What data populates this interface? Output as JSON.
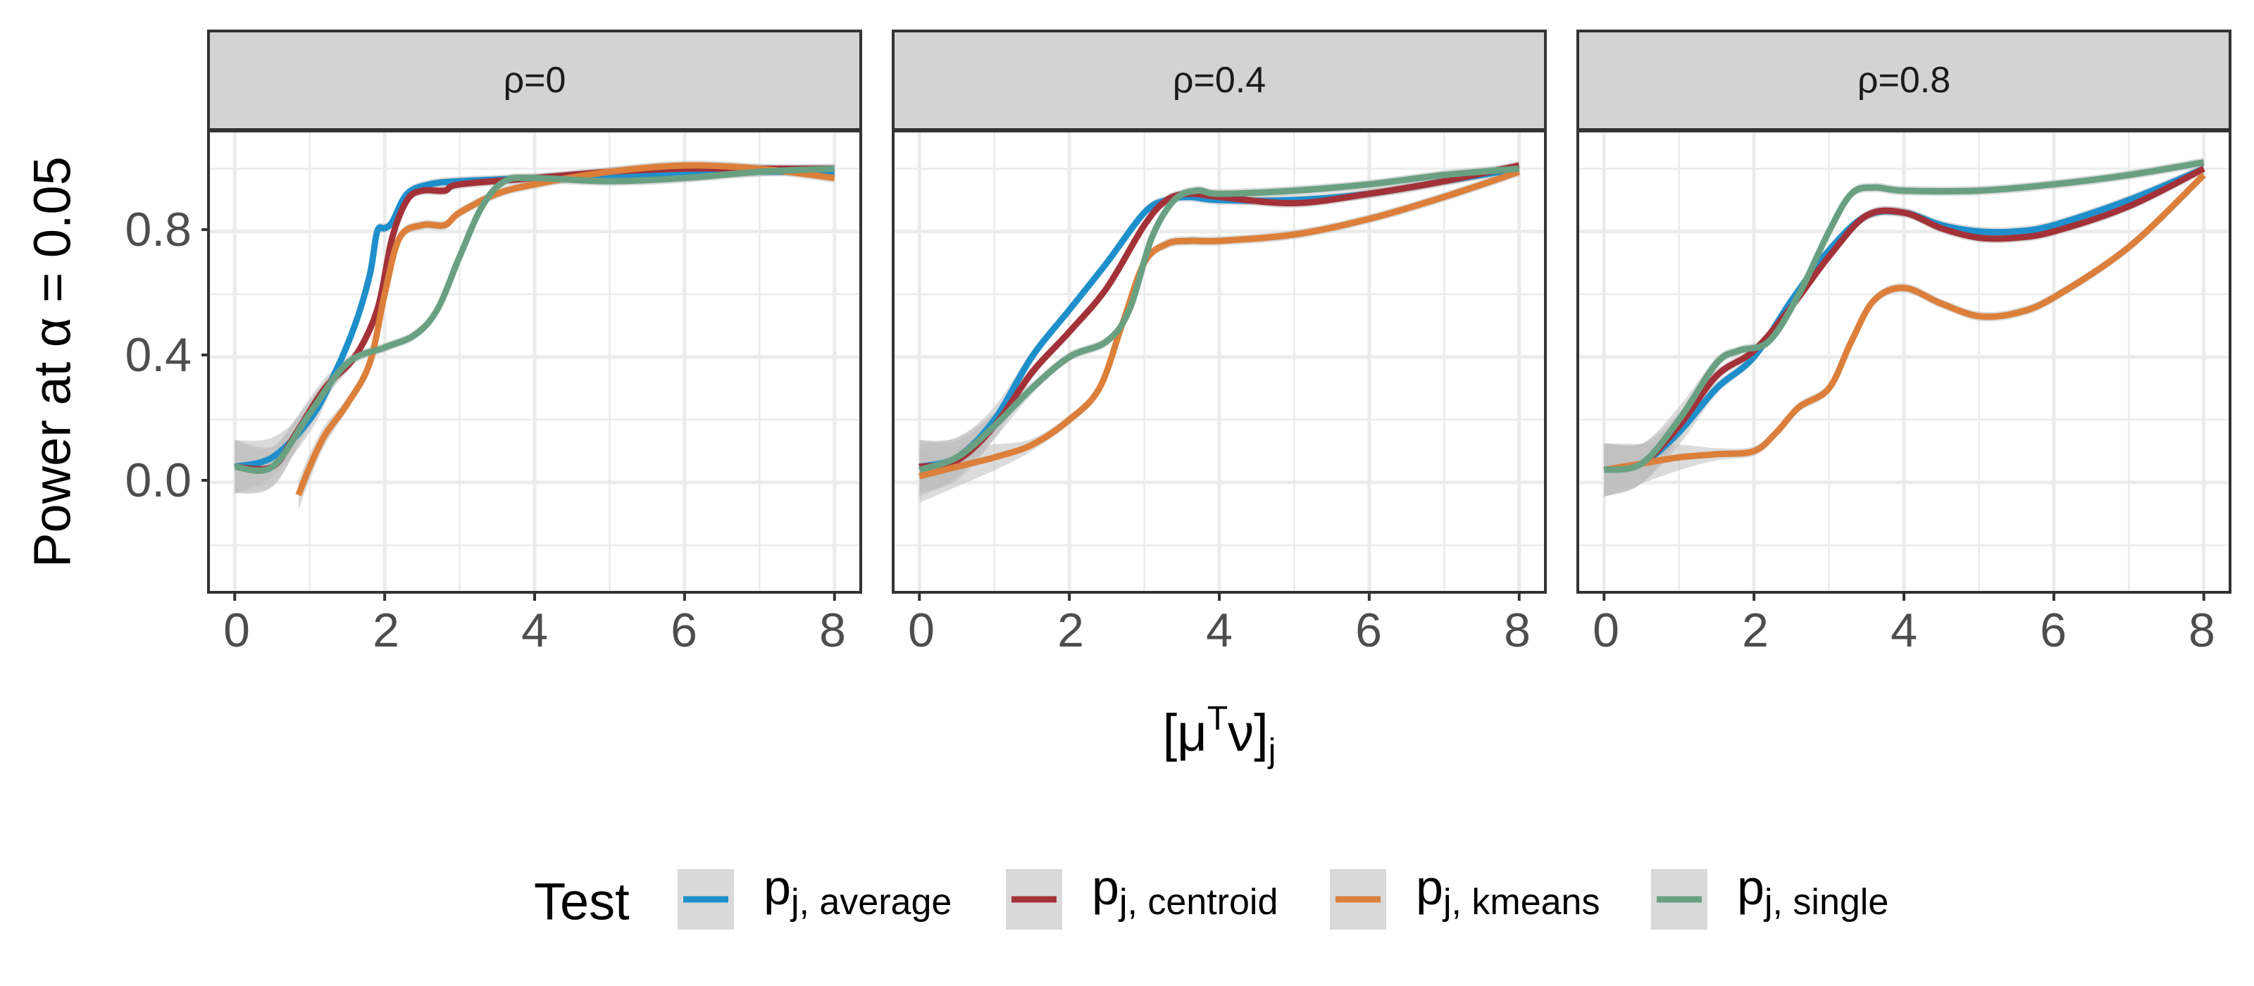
{
  "chart_data": {
    "type": "line",
    "ylabel": "Power at α = 0.05",
    "xlabel": {
      "main": "[μ",
      "sup": "T",
      "mid": "ν]",
      "sub": "j"
    },
    "xlim": [
      -0.35,
      8.35
    ],
    "ylim": [
      -0.35,
      1.12
    ],
    "x_ticks": [
      0,
      2,
      4,
      6,
      8
    ],
    "y_ticks": [
      0.0,
      0.4,
      0.8
    ],
    "y_tick_labels": [
      "0.0",
      "0.4",
      "0.8"
    ],
    "x_tick_labels": [
      "0",
      "2",
      "4",
      "6",
      "8"
    ],
    "legend": {
      "title": "Test",
      "position": "bottom",
      "entries": [
        {
          "key": "average",
          "main": "p",
          "sub": "j, average"
        },
        {
          "key": "centroid",
          "main": "p",
          "sub": "j, centroid"
        },
        {
          "key": "kmeans",
          "main": "p",
          "sub": "j, kmeans"
        },
        {
          "key": "single",
          "main": "p",
          "sub": "j, single"
        }
      ]
    },
    "colors": {
      "average": "#1f8fcc",
      "centroid": "#a33238",
      "kmeans": "#db7f3a",
      "single": "#6aa082",
      "ribbon": "#bdbdbd",
      "strip_bg": "#d3d3d3",
      "grid": "#ebebeb"
    },
    "panels": [
      {
        "label": "ρ=0",
        "series": [
          {
            "name": "average",
            "x": [
              0,
              0.5,
              1,
              1.3,
              1.6,
              1.8,
              1.9,
              2.0,
              2.1,
              2.3,
              2.6,
              3,
              4,
              5,
              6,
              7,
              8
            ],
            "y": [
              0.05,
              0.08,
              0.2,
              0.33,
              0.5,
              0.66,
              0.8,
              0.81,
              0.83,
              0.92,
              0.95,
              0.96,
              0.97,
              0.98,
              0.98,
              0.99,
              0.99
            ]
          },
          {
            "name": "centroid",
            "x": [
              0,
              0.5,
              0.8,
              1.2,
              1.6,
              1.9,
              2.1,
              2.3,
              2.5,
              2.8,
              3,
              4,
              5,
              6,
              7,
              8
            ],
            "y": [
              0.05,
              0.05,
              0.15,
              0.3,
              0.4,
              0.55,
              0.78,
              0.9,
              0.93,
              0.93,
              0.95,
              0.97,
              0.99,
              1.0,
              1.0,
              1.0
            ]
          },
          {
            "name": "kmeans",
            "x": [
              0.85,
              1.0,
              1.2,
              1.5,
              1.8,
              2.0,
              2.2,
              2.5,
              2.8,
              3,
              3.5,
              4,
              5,
              6,
              7,
              8
            ],
            "y": [
              -0.04,
              0.05,
              0.15,
              0.25,
              0.38,
              0.6,
              0.78,
              0.82,
              0.82,
              0.86,
              0.92,
              0.95,
              0.99,
              1.01,
              1.0,
              0.97
            ]
          },
          {
            "name": "single",
            "x": [
              0,
              0.5,
              1,
              1.5,
              2,
              2.4,
              2.7,
              3.0,
              3.3,
              3.6,
              4,
              5,
              6,
              7,
              8
            ],
            "y": [
              0.05,
              0.05,
              0.22,
              0.38,
              0.43,
              0.47,
              0.55,
              0.72,
              0.88,
              0.96,
              0.97,
              0.96,
              0.97,
              0.99,
              1.0
            ]
          }
        ]
      },
      {
        "label": "ρ=0.4",
        "series": [
          {
            "name": "average",
            "x": [
              0,
              0.5,
              1,
              1.5,
              2,
              2.5,
              3,
              3.3,
              3.6,
              4,
              5,
              6,
              7,
              8
            ],
            "y": [
              0.05,
              0.08,
              0.2,
              0.4,
              0.55,
              0.7,
              0.86,
              0.9,
              0.91,
              0.9,
              0.9,
              0.92,
              0.96,
              1.0
            ]
          },
          {
            "name": "centroid",
            "x": [
              0,
              0.5,
              1,
              1.5,
              2,
              2.5,
              3,
              3.3,
              3.6,
              4,
              5,
              6,
              7,
              8
            ],
            "y": [
              0.05,
              0.07,
              0.18,
              0.35,
              0.48,
              0.62,
              0.82,
              0.9,
              0.92,
              0.91,
              0.89,
              0.92,
              0.96,
              1.01
            ]
          },
          {
            "name": "kmeans",
            "x": [
              0,
              0.5,
              1,
              1.5,
              2,
              2.4,
              2.7,
              3.0,
              3.3,
              3.6,
              4,
              5,
              6,
              7,
              8
            ],
            "y": [
              0.02,
              0.05,
              0.08,
              0.12,
              0.2,
              0.3,
              0.5,
              0.7,
              0.76,
              0.77,
              0.77,
              0.79,
              0.84,
              0.91,
              0.99
            ]
          },
          {
            "name": "single",
            "x": [
              0,
              0.5,
              1,
              1.5,
              2,
              2.5,
              2.8,
              3.1,
              3.4,
              3.7,
              4,
              5,
              6,
              7,
              8
            ],
            "y": [
              0.04,
              0.08,
              0.18,
              0.3,
              0.4,
              0.45,
              0.55,
              0.78,
              0.9,
              0.93,
              0.92,
              0.93,
              0.95,
              0.98,
              1.0
            ]
          }
        ]
      },
      {
        "label": "ρ=0.8",
        "series": [
          {
            "name": "average",
            "x": [
              0,
              0.5,
              1,
              1.5,
              2,
              2.5,
              3,
              3.5,
              4,
              4.5,
              5,
              5.5,
              6,
              7,
              8
            ],
            "y": [
              0.04,
              0.06,
              0.16,
              0.3,
              0.4,
              0.58,
              0.74,
              0.85,
              0.86,
              0.82,
              0.8,
              0.8,
              0.82,
              0.9,
              1.0
            ]
          },
          {
            "name": "centroid",
            "x": [
              0,
              0.5,
              1,
              1.5,
              2,
              2.5,
              3,
              3.5,
              4,
              4.5,
              5,
              5.5,
              6,
              7,
              8
            ],
            "y": [
              0.04,
              0.06,
              0.18,
              0.34,
              0.42,
              0.56,
              0.72,
              0.85,
              0.86,
              0.81,
              0.78,
              0.78,
              0.8,
              0.88,
              1.0
            ]
          },
          {
            "name": "kmeans",
            "x": [
              0,
              0.5,
              1,
              1.5,
              2,
              2.3,
              2.6,
              3,
              3.3,
              3.6,
              4,
              4.5,
              5,
              5.5,
              6,
              7,
              8
            ],
            "y": [
              0.04,
              0.06,
              0.08,
              0.09,
              0.1,
              0.16,
              0.24,
              0.3,
              0.45,
              0.58,
              0.62,
              0.57,
              0.53,
              0.54,
              0.59,
              0.75,
              0.98
            ]
          },
          {
            "name": "single",
            "x": [
              0,
              0.5,
              1,
              1.5,
              1.8,
              2.2,
              2.6,
              3.0,
              3.3,
              3.6,
              4,
              5,
              6,
              7,
              8
            ],
            "y": [
              0.04,
              0.06,
              0.2,
              0.38,
              0.42,
              0.45,
              0.6,
              0.8,
              0.92,
              0.94,
              0.93,
              0.93,
              0.95,
              0.98,
              1.02
            ]
          }
        ]
      }
    ]
  }
}
